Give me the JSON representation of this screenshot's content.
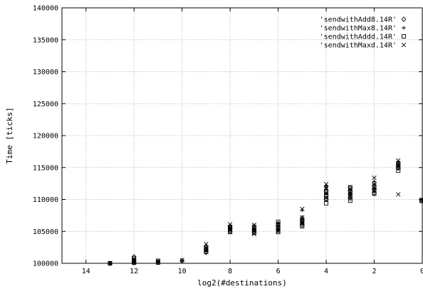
{
  "chart_data": {
    "type": "scatter",
    "xlabel": "log2(#destinations)",
    "ylabel": "Time [ticks]",
    "xlim": [
      15,
      0
    ],
    "ylim": [
      100000,
      140000
    ],
    "x_reversed": true,
    "x_ticks": [
      14,
      12,
      10,
      8,
      6,
      4,
      2,
      0
    ],
    "x_tick_labels": [
      "14",
      "12",
      "10",
      "8",
      "6",
      "4",
      "2",
      "0"
    ],
    "y_ticks": [
      100000,
      105000,
      110000,
      115000,
      120000,
      125000,
      130000,
      135000,
      140000
    ],
    "y_tick_labels": [
      "100000",
      "105000",
      "110000",
      "115000",
      "120000",
      "125000",
      "130000",
      "135000",
      "140000"
    ],
    "grid": true,
    "legend_position": "top-right",
    "series": [
      {
        "name": "'sendwithAdd8.14R'",
        "marker": "diamond",
        "points": [
          [
            13,
            100000
          ],
          [
            12,
            100100
          ],
          [
            12,
            100500
          ],
          [
            12,
            101000
          ],
          [
            11,
            100200
          ],
          [
            10,
            100400
          ],
          [
            9,
            101700
          ],
          [
            9,
            102100
          ],
          [
            9,
            102600
          ],
          [
            8,
            105000
          ],
          [
            8,
            105400
          ],
          [
            8,
            105800
          ],
          [
            7,
            104900
          ],
          [
            7,
            105300
          ],
          [
            7,
            105700
          ],
          [
            6,
            105200
          ],
          [
            6,
            105700
          ],
          [
            6,
            106200
          ],
          [
            5,
            106000
          ],
          [
            5,
            106700
          ],
          [
            5,
            107100
          ],
          [
            4,
            110000
          ],
          [
            4,
            110600
          ],
          [
            4,
            111400
          ],
          [
            4,
            112000
          ],
          [
            3,
            110200
          ],
          [
            3,
            110800
          ],
          [
            3,
            111300
          ],
          [
            3,
            111800
          ],
          [
            2,
            111000
          ],
          [
            2,
            111600
          ],
          [
            2,
            112200
          ],
          [
            2,
            112600
          ],
          [
            1,
            114900
          ],
          [
            1,
            115300
          ],
          [
            1,
            115700
          ],
          [
            0,
            109800
          ]
        ]
      },
      {
        "name": "'sendwithMax8.14R'",
        "marker": "plus",
        "points": [
          [
            13,
            100000
          ],
          [
            12,
            100200
          ],
          [
            12,
            100600
          ],
          [
            11,
            100300
          ],
          [
            10,
            100400
          ],
          [
            9,
            101800
          ],
          [
            9,
            102300
          ],
          [
            9,
            102800
          ],
          [
            8,
            105100
          ],
          [
            8,
            105500
          ],
          [
            8,
            105900
          ],
          [
            7,
            105000
          ],
          [
            7,
            105400
          ],
          [
            7,
            105900
          ],
          [
            6,
            105300
          ],
          [
            6,
            105800
          ],
          [
            6,
            106300
          ],
          [
            5,
            106200
          ],
          [
            5,
            106800
          ],
          [
            5,
            108300
          ],
          [
            4,
            110200
          ],
          [
            4,
            110800
          ],
          [
            4,
            111600
          ],
          [
            4,
            112100
          ],
          [
            3,
            110400
          ],
          [
            3,
            111000
          ],
          [
            3,
            111500
          ],
          [
            2,
            111200
          ],
          [
            2,
            111800
          ],
          [
            2,
            112800
          ],
          [
            1,
            115000
          ],
          [
            1,
            115500
          ],
          [
            1,
            115900
          ],
          [
            0,
            109900
          ]
        ]
      },
      {
        "name": "'sendwithAddd.14R'",
        "marker": "square",
        "points": [
          [
            13,
            100000
          ],
          [
            12,
            100100
          ],
          [
            12,
            100400
          ],
          [
            12,
            100800
          ],
          [
            11,
            100100
          ],
          [
            11,
            100400
          ],
          [
            9,
            101800
          ],
          [
            9,
            102200
          ],
          [
            9,
            102500
          ],
          [
            8,
            104900
          ],
          [
            8,
            105300
          ],
          [
            8,
            105700
          ],
          [
            7,
            104800
          ],
          [
            7,
            105200
          ],
          [
            7,
            105600
          ],
          [
            6,
            104900
          ],
          [
            6,
            105500
          ],
          [
            6,
            106000
          ],
          [
            6,
            106500
          ],
          [
            5,
            105800
          ],
          [
            5,
            106300
          ],
          [
            5,
            106700
          ],
          [
            4,
            109400
          ],
          [
            4,
            110100
          ],
          [
            4,
            110700
          ],
          [
            4,
            111200
          ],
          [
            3,
            109800
          ],
          [
            3,
            110500
          ],
          [
            3,
            111200
          ],
          [
            3,
            111900
          ],
          [
            2,
            110900
          ],
          [
            2,
            111400
          ],
          [
            2,
            112000
          ],
          [
            1,
            114500
          ],
          [
            1,
            115000
          ],
          [
            1,
            115500
          ],
          [
            0,
            109800
          ]
        ]
      },
      {
        "name": "'sendwithMaxd.14R'",
        "marker": "cross",
        "points": [
          [
            13,
            100000
          ],
          [
            12,
            100300
          ],
          [
            12,
            100700
          ],
          [
            11,
            100300
          ],
          [
            10,
            100500
          ],
          [
            9,
            102000
          ],
          [
            9,
            102400
          ],
          [
            9,
            103000
          ],
          [
            8,
            105200
          ],
          [
            8,
            105600
          ],
          [
            8,
            106100
          ],
          [
            7,
            104600
          ],
          [
            7,
            105100
          ],
          [
            7,
            105700
          ],
          [
            7,
            106000
          ],
          [
            6,
            105000
          ],
          [
            6,
            105600
          ],
          [
            6,
            106100
          ],
          [
            5,
            106500
          ],
          [
            5,
            107200
          ],
          [
            5,
            108500
          ],
          [
            4,
            110300
          ],
          [
            4,
            111000
          ],
          [
            4,
            111800
          ],
          [
            4,
            112400
          ],
          [
            3,
            110600
          ],
          [
            3,
            111200
          ],
          [
            3,
            111700
          ],
          [
            2,
            111400
          ],
          [
            2,
            112300
          ],
          [
            2,
            113400
          ],
          [
            1,
            110800
          ],
          [
            1,
            115200
          ],
          [
            1,
            115700
          ],
          [
            1,
            116100
          ],
          [
            0,
            110000
          ]
        ]
      }
    ]
  }
}
